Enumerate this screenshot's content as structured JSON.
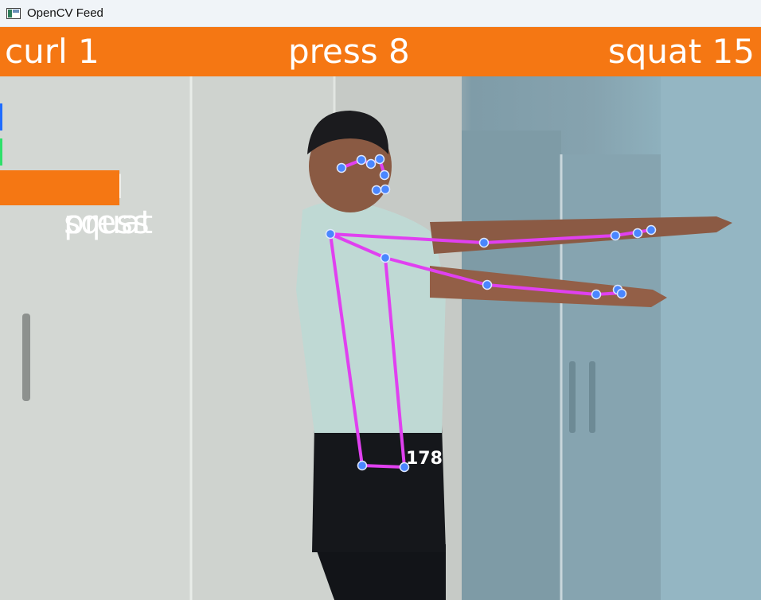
{
  "window": {
    "title": "OpenCV Feed"
  },
  "counters": {
    "curl": {
      "label": "curl",
      "value": "1"
    },
    "press": {
      "label": "press",
      "value": "8"
    },
    "squat": {
      "label": "squat",
      "value": "15"
    }
  },
  "menu": {
    "items": [
      {
        "label": "curl",
        "active": false
      },
      {
        "label": "press",
        "active": false
      },
      {
        "label": "squat",
        "active": true
      }
    ]
  },
  "overlay": {
    "angle": "178"
  },
  "colors": {
    "accent": "#f57713",
    "skeleton": "#e040f0",
    "joint": "#4a86ff"
  }
}
